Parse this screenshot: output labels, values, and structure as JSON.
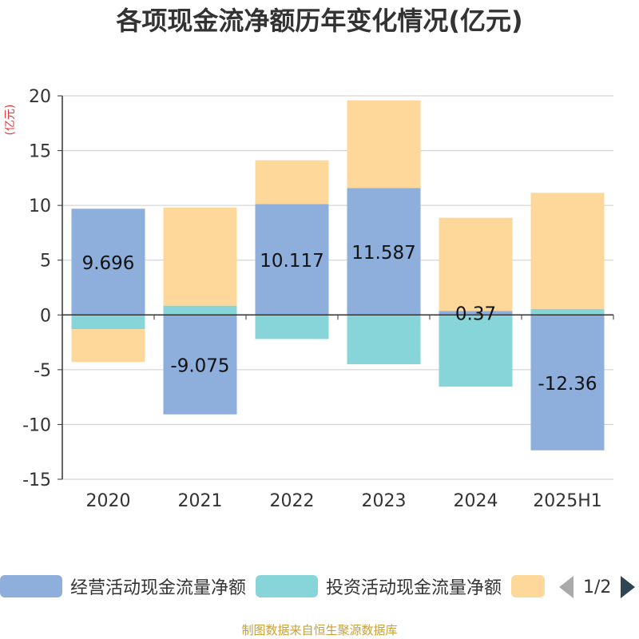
{
  "title": "各项现金流净额历年变化情况(亿元)",
  "footer": "制图数据来自恒生聚源数据库",
  "legend": {
    "items": [
      {
        "label": "经营活动现金流量净额",
        "color": "#8eaedb"
      },
      {
        "label": "投资活动现金流量净额",
        "color": "#87d5d8"
      },
      {
        "label": "",
        "color": "#fed89a"
      }
    ],
    "page": "1/2"
  },
  "chart_data": {
    "type": "bar",
    "stacked": true,
    "ylabel": "(亿元)",
    "ylim": [
      -15,
      20
    ],
    "yticks": [
      -15,
      -10,
      -5,
      0,
      5,
      10,
      15,
      20
    ],
    "categories": [
      "2020",
      "2021",
      "2022",
      "2023",
      "2024",
      "2025H1"
    ],
    "series": [
      {
        "name": "经营活动现金流量净额",
        "color": "#8eaedb",
        "values": [
          9.696,
          -9.075,
          10.117,
          11.587,
          0.37,
          -12.36
        ],
        "labels": [
          "9.696",
          "-9.075",
          "10.117",
          "11.587",
          "0.37",
          "-12.36"
        ]
      },
      {
        "name": "投资活动现金流量净额",
        "color": "#87d5d8",
        "values": [
          -1.3,
          0.85,
          -2.2,
          -4.5,
          -6.55,
          0.55
        ]
      },
      {
        "name": "",
        "color": "#fed89a",
        "values": [
          -3.0,
          8.95,
          4.0,
          8.0,
          8.5,
          10.6
        ]
      }
    ],
    "grid": true,
    "legend_position": "bottom"
  }
}
